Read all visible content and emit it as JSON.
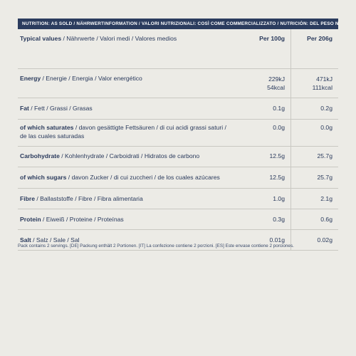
{
  "header": "NUTRITION: AS SOLD / NÄHRWERTINFORMATION / VALORI NUTRIZIONALI: COSÌ COME COMMERCIALIZZATO / NUTRICIÓN: DEL PESO NETO:",
  "columns": {
    "label_bold": "Typical values",
    "label_rest": " / Nährwerte / Valori medi / Valores medios",
    "col1": "Per 100g",
    "col2": "Per 206g"
  },
  "rows": [
    {
      "bold": "Energy",
      "rest": " / Energie / Energia / Valor energético",
      "v1a": "229kJ",
      "v1b": "54kcal",
      "v2a": "471kJ",
      "v2b": "111kcal"
    },
    {
      "bold": "Fat",
      "rest": " / Fett / Grassi / Grasas",
      "v1": "0.1g",
      "v2": "0.2g"
    },
    {
      "bold": "of which saturates",
      "rest": " / davon gesättigte Fettsäuren / di cui acidi grassi saturi /",
      "rest2": "de las cuales saturadas",
      "v1": "0.0g",
      "v2": "0.0g"
    },
    {
      "bold": "Carbohydrate",
      "rest": " / Kohlenhydrate / Carboidrati / Hidratos de carbono",
      "v1": "12.5g",
      "v2": "25.7g"
    },
    {
      "bold": "of which sugars",
      "rest": " / davon Zucker / di cui zuccheri / de los cuales azúcares",
      "v1": "12.5g",
      "v2": "25.7g"
    },
    {
      "bold": "Fibre",
      "rest": " / Ballaststoffe / Fibre / Fibra alimentaria",
      "v1": "1.0g",
      "v2": "2.1g"
    },
    {
      "bold": "Protein",
      "rest": " / Eiweiß / Proteine / Proteínas",
      "v1": "0.3g",
      "v2": "0.6g"
    },
    {
      "bold": "Salt",
      "rest": " / Salz / Sale / Sal",
      "v1": "0.01g",
      "v2": "0.02g"
    }
  ],
  "footnote": "Pack contains 2 servings. [DE] Packung enthält 2 Portionen. [IT] La confezione contiene 2 porzioni. [ES] Este envase contiene 2 porciones."
}
